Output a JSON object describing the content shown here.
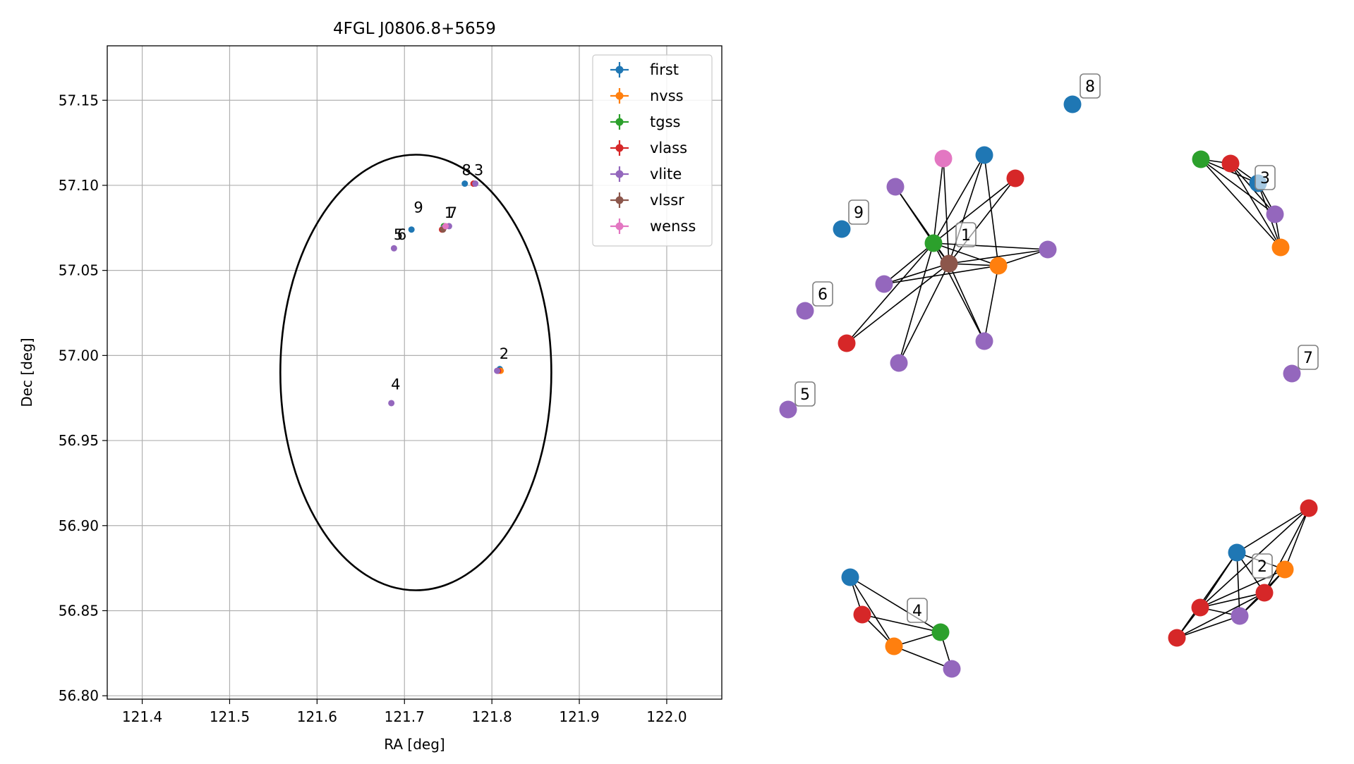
{
  "colors": {
    "first": "#1f77b4",
    "nvss": "#ff7f0e",
    "tgss": "#2ca02c",
    "vlass": "#d62728",
    "vlite": "#9467bd",
    "vlssr": "#8c564b",
    "wenss": "#e377c2"
  },
  "chart_data": [
    {
      "type": "scatter",
      "title": "4FGL J0806.8+5659",
      "xlabel": "RA [deg]",
      "ylabel": "Dec [deg]",
      "xlim": [
        121.36,
        122.063
      ],
      "ylim": [
        56.798,
        57.182
      ],
      "xticks": [
        121.4,
        121.5,
        121.6,
        121.7,
        121.8,
        121.9,
        122.0
      ],
      "xtick_labels": [
        "121.4",
        "121.5",
        "121.6",
        "121.7",
        "121.8",
        "121.9",
        "122.0"
      ],
      "yticks": [
        56.8,
        56.85,
        56.9,
        56.95,
        57.0,
        57.05,
        57.1,
        57.15
      ],
      "ytick_labels": [
        "56.80",
        "56.85",
        "56.90",
        "56.95",
        "57.00",
        "57.05",
        "57.10",
        "57.15"
      ],
      "grid": true,
      "legend_position": "top-right",
      "legend": [
        "first",
        "nvss",
        "tgss",
        "vlass",
        "vlite",
        "vlssr",
        "wenss"
      ],
      "ellipse": {
        "center": [
          121.713,
          56.99
        ],
        "semi_axis_ra": 0.155,
        "semi_axis_dec": 0.128
      },
      "series": [
        {
          "name": "first",
          "points": [
            [
              121.708,
              57.074
            ],
            [
              121.769,
              57.101
            ],
            [
              121.809,
              56.992
            ]
          ]
        },
        {
          "name": "nvss",
          "points": [
            [
              121.81,
              56.991
            ]
          ]
        },
        {
          "name": "tgss",
          "points": [
            [
              121.745,
              57.076
            ]
          ]
        },
        {
          "name": "vlass",
          "points": [
            [
              121.743,
              57.074
            ],
            [
              121.779,
              57.101
            ],
            [
              121.807,
              56.991
            ]
          ]
        },
        {
          "name": "vlite",
          "points": [
            [
              121.745,
              57.075
            ],
            [
              121.688,
              57.063
            ],
            [
              121.685,
              56.972
            ],
            [
              121.781,
              57.101
            ],
            [
              121.751,
              57.076
            ],
            [
              121.806,
              56.991
            ]
          ]
        },
        {
          "name": "vlssr",
          "points": [
            [
              121.744,
              57.074
            ]
          ]
        },
        {
          "name": "wenss",
          "points": [
            [
              121.747,
              57.076
            ]
          ]
        }
      ],
      "labels": [
        {
          "text": "8",
          "x": 121.771,
          "y": 57.106
        },
        {
          "text": "3",
          "x": 121.785,
          "y": 57.106
        },
        {
          "text": "9",
          "x": 121.716,
          "y": 57.084
        },
        {
          "text": "1",
          "x": 121.751,
          "y": 57.081
        },
        {
          "text": "7",
          "x": 121.755,
          "y": 57.081
        },
        {
          "text": "5",
          "x": 121.693,
          "y": 57.068
        },
        {
          "text": "6",
          "x": 121.697,
          "y": 57.068
        },
        {
          "text": "2",
          "x": 121.814,
          "y": 56.998
        },
        {
          "text": "4",
          "x": 121.69,
          "y": 56.98
        }
      ]
    },
    {
      "type": "network",
      "clusters": [
        {
          "label": "1",
          "nodes": [
            {
              "id": "a",
              "s": "tgss"
            },
            {
              "id": "b",
              "s": "vlssr"
            },
            {
              "id": "c",
              "s": "nvss"
            },
            {
              "id": "d",
              "s": "wenss"
            },
            {
              "id": "e",
              "s": "first"
            },
            {
              "id": "f",
              "s": "vlass"
            },
            {
              "id": "g",
              "s": "vlite"
            },
            {
              "id": "h",
              "s": "vlite"
            },
            {
              "id": "i",
              "s": "vlite"
            },
            {
              "id": "j",
              "s": "vlite"
            },
            {
              "id": "k",
              "s": "vlite"
            },
            {
              "id": "l",
              "s": "vlass"
            }
          ],
          "edges": [
            [
              "a",
              "b"
            ],
            [
              "a",
              "c"
            ],
            [
              "a",
              "d"
            ],
            [
              "a",
              "e"
            ],
            [
              "a",
              "f"
            ],
            [
              "a",
              "g"
            ],
            [
              "a",
              "h"
            ],
            [
              "a",
              "i"
            ],
            [
              "a",
              "j"
            ],
            [
              "a",
              "k"
            ],
            [
              "a",
              "l"
            ],
            [
              "b",
              "c"
            ],
            [
              "b",
              "d"
            ],
            [
              "b",
              "e"
            ],
            [
              "b",
              "f"
            ],
            [
              "b",
              "g"
            ],
            [
              "b",
              "h"
            ],
            [
              "b",
              "i"
            ],
            [
              "b",
              "j"
            ],
            [
              "b",
              "k"
            ],
            [
              "b",
              "l"
            ],
            [
              "c",
              "e"
            ],
            [
              "c",
              "h"
            ],
            [
              "c",
              "i"
            ],
            [
              "c",
              "k"
            ]
          ]
        },
        {
          "label": "2",
          "nodes": [
            {
              "id": "a",
              "s": "first"
            },
            {
              "id": "b",
              "s": "nvss"
            },
            {
              "id": "c",
              "s": "vlass"
            },
            {
              "id": "d",
              "s": "vlass"
            },
            {
              "id": "e",
              "s": "vlass"
            },
            {
              "id": "f",
              "s": "vlass"
            },
            {
              "id": "g",
              "s": "vlite"
            }
          ],
          "edges": [
            [
              "a",
              "b"
            ],
            [
              "a",
              "c"
            ],
            [
              "a",
              "d"
            ],
            [
              "a",
              "e"
            ],
            [
              "a",
              "f"
            ],
            [
              "a",
              "g"
            ],
            [
              "b",
              "c"
            ],
            [
              "b",
              "d"
            ],
            [
              "b",
              "e"
            ],
            [
              "b",
              "g"
            ],
            [
              "c",
              "d"
            ],
            [
              "c",
              "e"
            ],
            [
              "d",
              "e"
            ],
            [
              "d",
              "f"
            ],
            [
              "d",
              "g"
            ],
            [
              "e",
              "f"
            ],
            [
              "e",
              "g"
            ],
            [
              "f",
              "g"
            ]
          ]
        },
        {
          "label": "3",
          "nodes": [
            {
              "id": "a",
              "s": "tgss"
            },
            {
              "id": "b",
              "s": "vlass"
            },
            {
              "id": "c",
              "s": "first"
            },
            {
              "id": "d",
              "s": "vlite"
            },
            {
              "id": "e",
              "s": "nvss"
            }
          ],
          "edges": [
            [
              "a",
              "b"
            ],
            [
              "a",
              "c"
            ],
            [
              "a",
              "d"
            ],
            [
              "a",
              "e"
            ],
            [
              "b",
              "c"
            ],
            [
              "b",
              "d"
            ],
            [
              "b",
              "e"
            ],
            [
              "c",
              "d"
            ],
            [
              "c",
              "e"
            ],
            [
              "d",
              "e"
            ]
          ]
        },
        {
          "label": "4",
          "nodes": [
            {
              "id": "a",
              "s": "first"
            },
            {
              "id": "b",
              "s": "vlass"
            },
            {
              "id": "c",
              "s": "nvss"
            },
            {
              "id": "d",
              "s": "tgss"
            },
            {
              "id": "e",
              "s": "vlite"
            }
          ],
          "edges": [
            [
              "a",
              "b"
            ],
            [
              "a",
              "c"
            ],
            [
              "a",
              "d"
            ],
            [
              "b",
              "c"
            ],
            [
              "b",
              "d"
            ],
            [
              "c",
              "d"
            ],
            [
              "c",
              "e"
            ],
            [
              "d",
              "e"
            ]
          ]
        },
        {
          "label": "5",
          "nodes": [
            {
              "id": "a",
              "s": "vlite"
            }
          ],
          "edges": []
        },
        {
          "label": "6",
          "nodes": [
            {
              "id": "a",
              "s": "vlite"
            }
          ],
          "edges": []
        },
        {
          "label": "7",
          "nodes": [
            {
              "id": "a",
              "s": "vlite"
            }
          ],
          "edges": []
        },
        {
          "label": "8",
          "nodes": [
            {
              "id": "a",
              "s": "first"
            }
          ],
          "edges": []
        },
        {
          "label": "9",
          "nodes": [
            {
              "id": "a",
              "s": "first"
            }
          ],
          "edges": []
        }
      ]
    }
  ]
}
